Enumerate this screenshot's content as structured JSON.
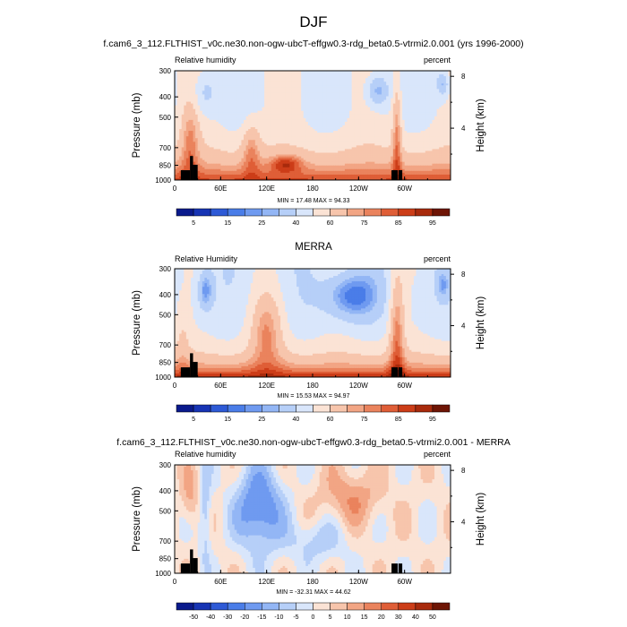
{
  "figure": {
    "main_title": "DJF"
  },
  "chart_data": [
    {
      "type": "heatmap",
      "title": "f.cam6_3_112.FLTHIST_v0c.ne30.non-ogw-ubcT-effgw0.3-rdg_beta0.5-vtrmi2.0.001 (yrs 1996-2000)",
      "left_label": "Relative humidity",
      "right_label": "percent",
      "ylabel": "Pressure (mb)",
      "ylabel_right": "Height (km)",
      "xlabel": "",
      "x_ticks": [
        "60E",
        "120E",
        "180",
        "120W",
        "60W"
      ],
      "x_tick_values": [
        60,
        120,
        180,
        240,
        300
      ],
      "xlim": [
        0,
        360
      ],
      "y_ticks": [
        "300",
        "400",
        "500",
        "700",
        "850",
        "1000"
      ],
      "y_tick_values": [
        300,
        400,
        500,
        700,
        850,
        1000
      ],
      "ylim": [
        300,
        1000
      ],
      "right_ticks": [
        "8",
        "4"
      ],
      "right_tick_values": [
        8,
        4
      ],
      "min_max": "MIN = 17.48  MAX = 94.33",
      "min_value": 17.48,
      "max_value": 94.33,
      "colorbar_labels": [
        "5",
        "15",
        "25",
        "40",
        "60",
        "75",
        "85",
        "95"
      ],
      "colorbar_levels": [
        5,
        10,
        15,
        20,
        25,
        30,
        40,
        50,
        60,
        70,
        75,
        80,
        85,
        90,
        95
      ],
      "colors": [
        "#0a1a8c",
        "#1734b4",
        "#2e5ad6",
        "#4a7de8",
        "#6f9af0",
        "#93b6f5",
        "#b6cff8",
        "#d9e6fb",
        "#fbe3d5",
        "#f7c5ac",
        "#f2a584",
        "#ea835d",
        "#df5e37",
        "#cc3d18",
        "#a82a0c",
        "#6e1505"
      ]
    },
    {
      "type": "heatmap",
      "title": "MERRA",
      "left_label": "Relative Humidity",
      "right_label": "percent",
      "ylabel": "Pressure (mb)",
      "ylabel_right": "Height (km)",
      "xlabel": "",
      "x_ticks": [
        "60E",
        "120E",
        "180",
        "120W",
        "60W"
      ],
      "x_tick_values": [
        60,
        120,
        180,
        240,
        300
      ],
      "xlim": [
        0,
        360
      ],
      "y_ticks": [
        "300",
        "400",
        "500",
        "700",
        "850",
        "1000"
      ],
      "y_tick_values": [
        300,
        400,
        500,
        700,
        850,
        1000
      ],
      "ylim": [
        300,
        1000
      ],
      "right_ticks": [
        "8",
        "4"
      ],
      "right_tick_values": [
        8,
        4
      ],
      "min_max": "MIN = 15.53  MAX = 94.97",
      "min_value": 15.53,
      "max_value": 94.97,
      "colorbar_labels": [
        "5",
        "15",
        "25",
        "40",
        "60",
        "75",
        "85",
        "95"
      ],
      "colorbar_levels": [
        5,
        10,
        15,
        20,
        25,
        30,
        40,
        50,
        60,
        70,
        75,
        80,
        85,
        90,
        95
      ],
      "colors": [
        "#0a1a8c",
        "#1734b4",
        "#2e5ad6",
        "#4a7de8",
        "#6f9af0",
        "#93b6f5",
        "#b6cff8",
        "#d9e6fb",
        "#fbe3d5",
        "#f7c5ac",
        "#f2a584",
        "#ea835d",
        "#df5e37",
        "#cc3d18",
        "#a82a0c",
        "#6e1505"
      ]
    },
    {
      "type": "heatmap",
      "title": "f.cam6_3_112.FLTHIST_v0c.ne30.non-ogw-ubcT-effgw0.3-rdg_beta0.5-vtrmi2.0.001 - MERRA",
      "left_label": "Relative humidity",
      "right_label": "percent",
      "ylabel": "Pressure (mb)",
      "ylabel_right": "Height (km)",
      "xlabel": "",
      "x_ticks": [
        "60E",
        "120E",
        "180",
        "120W",
        "60W"
      ],
      "x_tick_values": [
        60,
        120,
        180,
        240,
        300
      ],
      "xlim": [
        0,
        360
      ],
      "y_ticks": [
        "300",
        "400",
        "500",
        "700",
        "850",
        "1000"
      ],
      "y_tick_values": [
        300,
        400,
        500,
        700,
        850,
        1000
      ],
      "ylim": [
        300,
        1000
      ],
      "right_ticks": [
        "8",
        "4"
      ],
      "right_tick_values": [
        8,
        4
      ],
      "min_max": "MIN = -32.31  MAX = 44.62",
      "min_value": -32.31,
      "max_value": 44.62,
      "colorbar_labels": [
        "-50",
        "-40",
        "-30",
        "-20",
        "-15",
        "-10",
        "-5",
        "0",
        "5",
        "10",
        "15",
        "20",
        "30",
        "40",
        "50"
      ],
      "colorbar_levels": [
        -50,
        -40,
        -30,
        -20,
        -15,
        -10,
        -5,
        0,
        5,
        10,
        15,
        20,
        30,
        40,
        50
      ],
      "colors": [
        "#0a1a8c",
        "#1734b4",
        "#2e5ad6",
        "#4a7de8",
        "#6f9af0",
        "#93b6f5",
        "#b6cff8",
        "#d9e6fb",
        "#fbe3d5",
        "#f7c5ac",
        "#f2a584",
        "#ea835d",
        "#df5e37",
        "#cc3d18",
        "#a82a0c",
        "#6e1505"
      ]
    }
  ]
}
